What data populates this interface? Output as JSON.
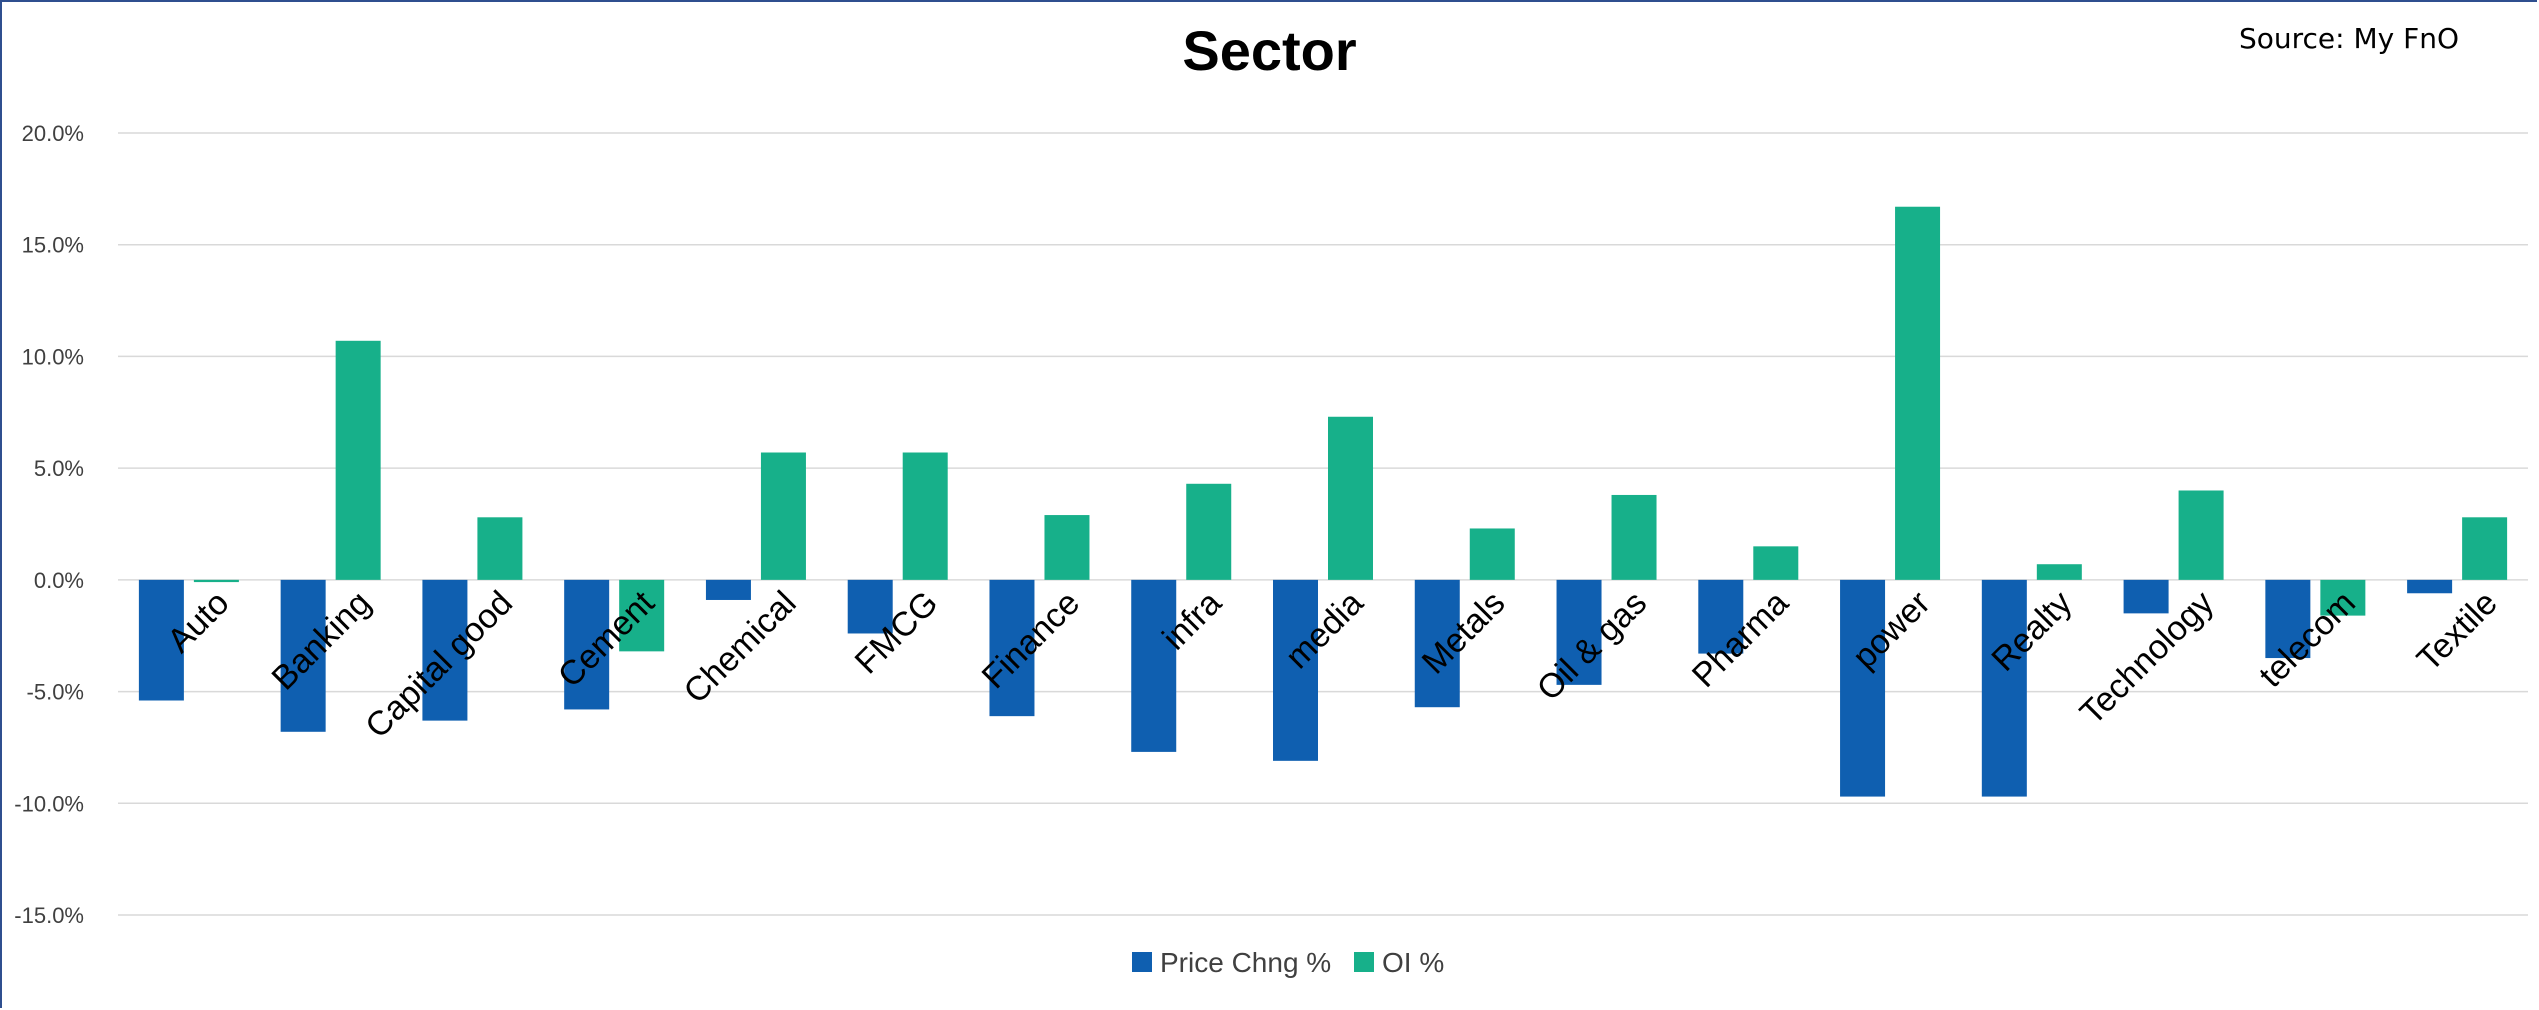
{
  "header": {
    "source": "Source: My FnO"
  },
  "chart_data": {
    "type": "bar",
    "title": "Sector",
    "categories": [
      "Auto",
      "Banking",
      "Capital good",
      "Cement",
      "Chemical",
      "FMCG",
      "Finance",
      "infra",
      "media",
      "Metals",
      "Oil & gas",
      "Pharma",
      "power",
      "Realty",
      "Technology",
      "telecom",
      "Textile"
    ],
    "series": [
      {
        "name": "Price Chng %",
        "color": "#0f5fb0",
        "values": [
          -5.4,
          -6.8,
          -6.3,
          -5.8,
          -0.9,
          -2.4,
          -6.1,
          -7.7,
          -8.1,
          -5.7,
          -4.7,
          -3.3,
          -9.7,
          -9.7,
          -1.5,
          -3.5,
          -0.6
        ]
      },
      {
        "name": "OI %",
        "color": "#17b08a",
        "values": [
          -0.1,
          10.7,
          2.8,
          -3.2,
          5.7,
          5.7,
          2.9,
          4.3,
          7.3,
          2.3,
          3.8,
          1.5,
          16.7,
          0.7,
          4.0,
          -1.6,
          2.8
        ]
      }
    ],
    "yticks": [
      20,
      15,
      10,
      5,
      0,
      -5,
      -10,
      -15
    ],
    "ytick_labels": [
      "20.0%",
      "15.0%",
      "10.0%",
      "5.0%",
      "0.0%",
      "-5.0%",
      "-10.0%",
      "-15.0%"
    ],
    "ylim": [
      -15,
      20
    ],
    "grid": true,
    "legend_position": "bottom"
  }
}
